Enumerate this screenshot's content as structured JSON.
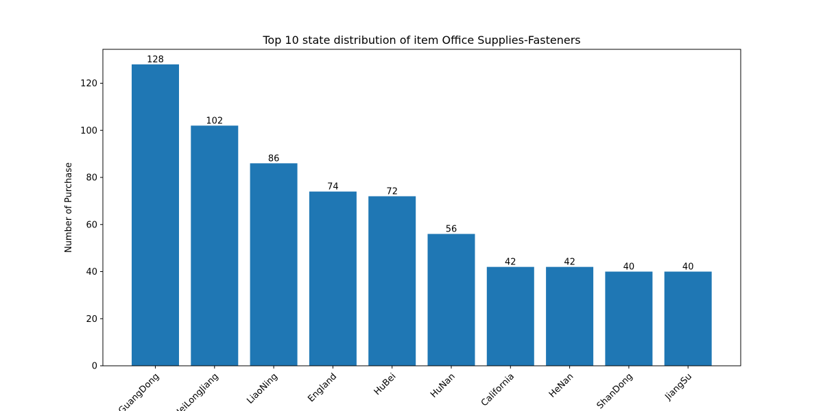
{
  "chart_data": {
    "type": "bar",
    "title": "Top 10 state distribution of item Office Supplies-Fasteners",
    "xlabel": "",
    "ylabel": "Number of Purchase",
    "categories": [
      "GuangDong",
      "HeiLongJiang",
      "LiaoNing",
      "England",
      "HuBei",
      "HuNan",
      "California",
      "HeNan",
      "ShanDong",
      "JiangSu"
    ],
    "values": [
      128,
      102,
      86,
      74,
      72,
      56,
      42,
      42,
      40,
      40
    ],
    "ylim": [
      0,
      134.4
    ],
    "yticks": [
      0,
      20,
      40,
      60,
      80,
      100,
      120
    ],
    "grid": false,
    "legend": "none",
    "bar_color": "#1f77b4",
    "data_labels": true
  }
}
